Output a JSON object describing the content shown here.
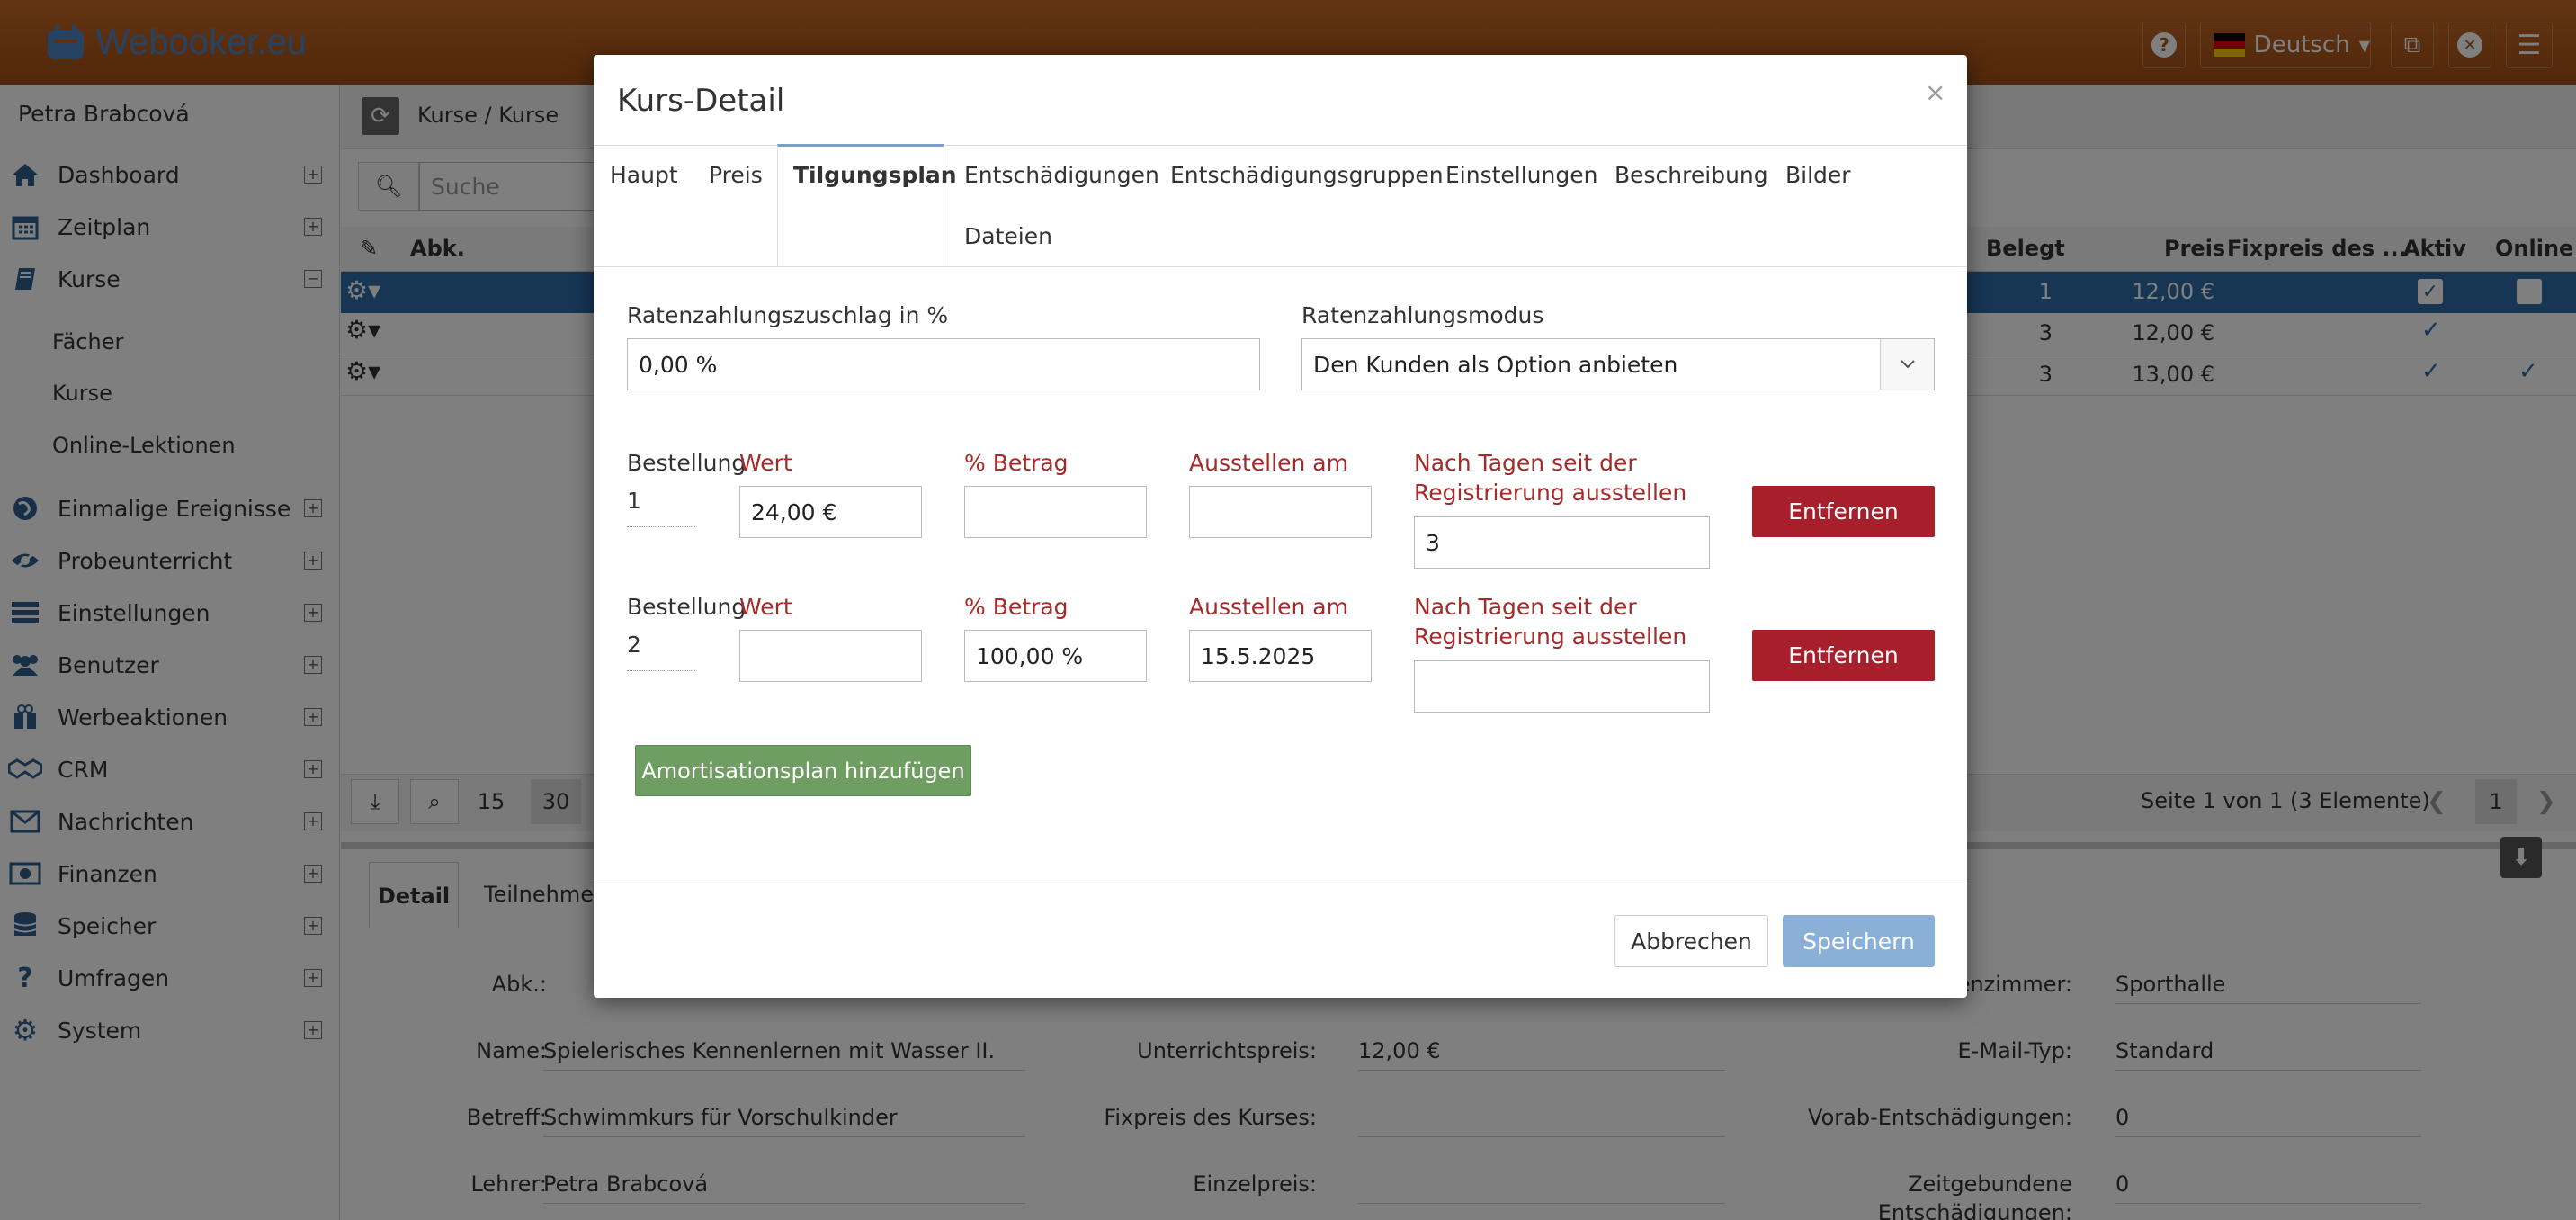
{
  "app": {
    "logo": "Webooker.eu",
    "language": "Deutsch"
  },
  "sidebar": {
    "user": "Petra Brabcová",
    "items": [
      {
        "label": "Dashboard",
        "icon": "home-icon",
        "toggle": "+"
      },
      {
        "label": "Zeitplan",
        "icon": "calendar-icon",
        "toggle": "+"
      },
      {
        "label": "Kurse",
        "icon": "book-icon",
        "toggle": "−"
      },
      {
        "label": "Einmalige Ereignisse",
        "icon": "globe-icon",
        "toggle": "+"
      },
      {
        "label": "Probeunterricht",
        "icon": "eye-icon",
        "toggle": "+"
      },
      {
        "label": "Einstellungen",
        "icon": "list-icon",
        "toggle": "+"
      },
      {
        "label": "Benutzer",
        "icon": "users-icon",
        "toggle": "+"
      },
      {
        "label": "Werbeaktionen",
        "icon": "gift-icon",
        "toggle": "+"
      },
      {
        "label": "CRM",
        "icon": "handshake-icon",
        "toggle": "+"
      },
      {
        "label": "Nachrichten",
        "icon": "envelope-icon",
        "toggle": "+"
      },
      {
        "label": "Finanzen",
        "icon": "money-icon",
        "toggle": "+"
      },
      {
        "label": "Speicher",
        "icon": "database-icon",
        "toggle": "+"
      },
      {
        "label": "Umfragen",
        "icon": "question-icon",
        "toggle": "+"
      },
      {
        "label": "System",
        "icon": "gears-icon",
        "toggle": "+"
      }
    ],
    "subitems": [
      "Fächer",
      "Kurse",
      "Online-Lektionen"
    ]
  },
  "main": {
    "breadcrumb": "Kurse / Kurse",
    "search_placeholder": "Suche",
    "columns": {
      "abk": "Abk.",
      "belegt": "Belegt",
      "preis": "Preis",
      "fixpreis": "Fixpreis des ...",
      "aktiv": "Aktiv",
      "online": "Online"
    },
    "rows": [
      {
        "belegt": "1",
        "preis": "12,00 €"
      },
      {
        "belegt": "3",
        "preis": "12,00 €"
      },
      {
        "belegt": "3",
        "preis": "13,00 €"
      }
    ],
    "pager": {
      "size1": "15",
      "size2": "30",
      "info": "Seite 1 von 1 (3 Elemente)",
      "page": "1"
    },
    "detail_tabs": [
      "Detail",
      "Teilnehmer"
    ],
    "detail": {
      "abk_label": "Abk.:",
      "name_label": "Name:",
      "name_value": "Spielerisches Kennenlernen mit Wasser II.",
      "betreff_label": "Betreff:",
      "betreff_value": "Schwimmkurs für Vorschulkinder",
      "lehrer_label": "Lehrer:",
      "lehrer_value": "Petra Brabcová",
      "unterrichtspreis_label": "Unterrichtspreis:",
      "unterrichtspreis_value": "12,00 €",
      "fixpreis_label": "Fixpreis des Kurses:",
      "einzelpreis_label": "Einzelpreis:",
      "zimmer_label": "enzimmer:",
      "zimmer_value": "Sporthalle",
      "email_label": "E-Mail-Typ:",
      "email_value": "Standard",
      "vorab_label": "Vorab-Entschädigungen:",
      "vorab_value": "0",
      "zeit_label_1": "Zeitgebundene",
      "zeit_label_2": "Entschädigungen:",
      "zeit_value": "0"
    }
  },
  "modal": {
    "title": "Kurs-Detail",
    "close": "×",
    "tabs": [
      "Haupt",
      "Preis",
      "Tilgungsplan",
      "Entschädigungen",
      "Entschädigungsgruppen",
      "Einstellungen",
      "Beschreibung",
      "Bilder",
      "Dateien"
    ],
    "surcharge_label": "Ratenzahlungszuschlag in %",
    "surcharge_value": "0,00 %",
    "mode_label": "Ratenzahlungsmodus",
    "mode_value": "Den Kunden als Option anbieten",
    "col_order": "Bestellung",
    "col_value": "Wert",
    "col_percent": "% Betrag",
    "col_issue": "Ausstellen am",
    "col_days_1": "Nach Tagen seit der",
    "col_days_2": "Registrierung ausstellen",
    "remove": "Entfernen",
    "rows": [
      {
        "order": "1",
        "value": "24,00 €",
        "percent": "",
        "issue": "",
        "days": "3"
      },
      {
        "order": "2",
        "value": "",
        "percent": "100,00 %",
        "issue": "15.5.2025",
        "days": ""
      }
    ],
    "add_button": "Amortisationsplan hinzufügen",
    "cancel": "Abbrechen",
    "save": "Speichern"
  }
}
